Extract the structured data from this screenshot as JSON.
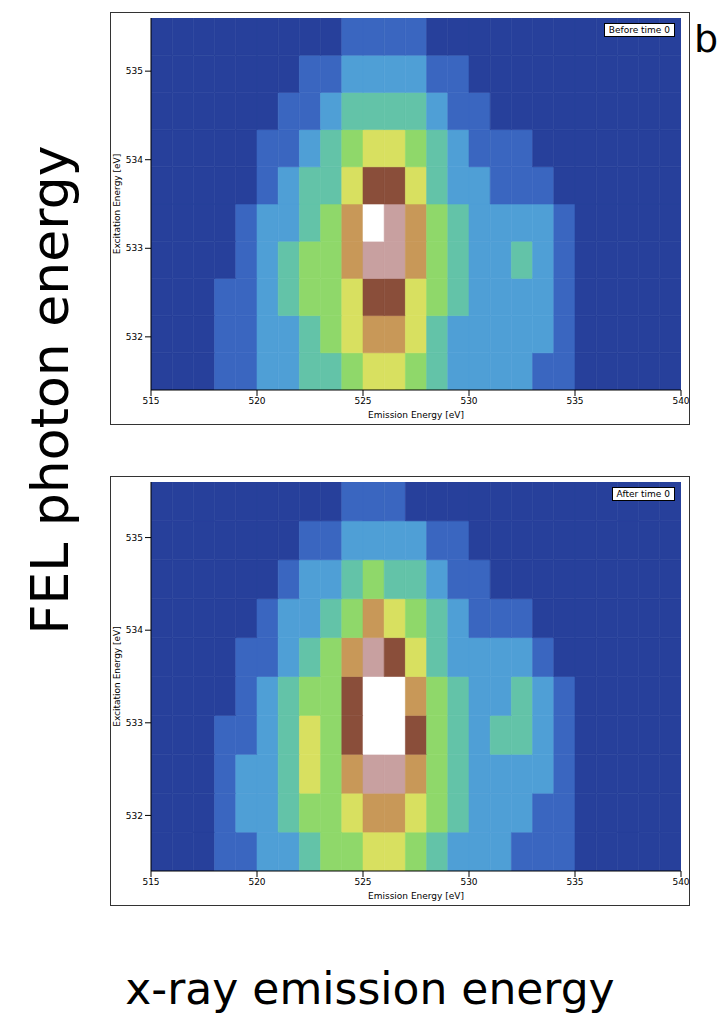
{
  "panel_label": "b",
  "y_label": "FEL photon energy",
  "x_label": "x-ray emission energy",
  "chart_data": [
    {
      "type": "heatmap",
      "title": "Before time 0",
      "x_axis_label": "Emission Energy [eV]",
      "y_axis_label": "Excitation Energy [eV]",
      "xlim": [
        515,
        540
      ],
      "xticks": [
        515,
        520,
        525,
        530,
        535,
        540
      ],
      "ylim": [
        531.4,
        535.6
      ],
      "yticks": [
        532,
        533,
        534,
        535
      ],
      "x_bins": [
        515,
        516,
        517,
        518,
        519,
        520,
        521,
        522,
        523,
        524,
        525,
        526,
        527,
        528,
        529,
        530,
        531,
        532,
        533,
        534,
        535,
        536,
        537,
        538,
        539,
        540
      ],
      "y_bins": [
        531.4,
        531.82,
        532.24,
        532.66,
        533.08,
        533.5,
        533.92,
        534.34,
        534.76,
        535.18,
        535.6
      ],
      "zlim": [
        0,
        10
      ],
      "cells": [
        [
          1,
          1,
          1,
          2,
          2,
          3,
          3,
          4,
          4,
          5,
          6,
          6,
          5,
          4,
          3,
          3,
          3,
          3,
          2,
          2,
          1,
          1,
          1,
          1,
          1
        ],
        [
          1,
          1,
          1,
          2,
          2,
          3,
          3,
          4,
          5,
          6,
          7,
          7,
          6,
          4,
          3,
          3,
          3,
          3,
          3,
          2,
          1,
          1,
          1,
          1,
          1
        ],
        [
          1,
          1,
          1,
          2,
          2,
          3,
          4,
          5,
          5,
          6,
          8,
          8,
          6,
          5,
          4,
          3,
          3,
          3,
          3,
          2,
          1,
          1,
          1,
          1,
          1
        ],
        [
          1,
          1,
          1,
          1,
          2,
          3,
          4,
          5,
          5,
          7,
          9,
          9,
          7,
          5,
          4,
          3,
          3,
          4,
          3,
          2,
          1,
          1,
          1,
          1,
          1
        ],
        [
          1,
          1,
          1,
          1,
          2,
          3,
          3,
          4,
          5,
          7,
          10,
          9,
          7,
          5,
          4,
          3,
          3,
          3,
          3,
          2,
          1,
          1,
          1,
          1,
          1
        ],
        [
          1,
          1,
          1,
          1,
          1,
          2,
          3,
          4,
          4,
          6,
          8,
          8,
          6,
          4,
          3,
          3,
          2,
          2,
          2,
          1,
          1,
          1,
          1,
          1,
          1
        ],
        [
          1,
          1,
          1,
          1,
          1,
          2,
          2,
          3,
          4,
          5,
          6,
          6,
          5,
          4,
          3,
          2,
          2,
          2,
          1,
          1,
          1,
          1,
          1,
          1,
          1
        ],
        [
          1,
          1,
          1,
          1,
          1,
          1,
          2,
          2,
          3,
          4,
          4,
          4,
          4,
          3,
          2,
          2,
          1,
          1,
          1,
          1,
          1,
          1,
          1,
          1,
          1
        ],
        [
          1,
          1,
          1,
          1,
          1,
          1,
          1,
          2,
          2,
          3,
          3,
          3,
          3,
          2,
          2,
          1,
          1,
          1,
          1,
          1,
          1,
          1,
          1,
          1,
          1
        ],
        [
          1,
          1,
          1,
          1,
          1,
          1,
          1,
          1,
          1,
          2,
          2,
          2,
          2,
          1,
          1,
          1,
          1,
          1,
          1,
          1,
          1,
          1,
          1,
          1,
          1
        ]
      ]
    },
    {
      "type": "heatmap",
      "title": "After time 0",
      "x_axis_label": "Emission Energy [eV]",
      "y_axis_label": "Excitation Energy [eV]",
      "xlim": [
        515,
        540
      ],
      "xticks": [
        515,
        520,
        525,
        530,
        535,
        540
      ],
      "ylim": [
        531.4,
        535.6
      ],
      "yticks": [
        532,
        533,
        534,
        535
      ],
      "x_bins": [
        515,
        516,
        517,
        518,
        519,
        520,
        521,
        522,
        523,
        524,
        525,
        526,
        527,
        528,
        529,
        530,
        531,
        532,
        533,
        534,
        535,
        536,
        537,
        538,
        539,
        540
      ],
      "y_bins": [
        531.4,
        531.82,
        532.24,
        532.66,
        533.08,
        533.5,
        533.92,
        534.34,
        534.76,
        535.18,
        535.6
      ],
      "zlim": [
        0,
        10
      ],
      "cells": [
        [
          1,
          1,
          1,
          2,
          2,
          3,
          3,
          4,
          5,
          5,
          6,
          6,
          5,
          4,
          3,
          3,
          3,
          2,
          2,
          2,
          1,
          1,
          1,
          1,
          1
        ],
        [
          1,
          1,
          1,
          2,
          3,
          3,
          4,
          5,
          5,
          6,
          7,
          7,
          6,
          5,
          4,
          3,
          3,
          3,
          2,
          2,
          1,
          1,
          1,
          1,
          1
        ],
        [
          1,
          1,
          1,
          2,
          3,
          3,
          4,
          6,
          5,
          7,
          9,
          9,
          7,
          5,
          4,
          3,
          3,
          3,
          3,
          2,
          1,
          1,
          1,
          1,
          1
        ],
        [
          1,
          1,
          1,
          2,
          2,
          3,
          4,
          6,
          5,
          8,
          10,
          10,
          8,
          5,
          4,
          3,
          4,
          4,
          3,
          2,
          1,
          1,
          1,
          1,
          1
        ],
        [
          1,
          1,
          1,
          1,
          2,
          3,
          4,
          5,
          5,
          8,
          10,
          10,
          7,
          5,
          4,
          3,
          3,
          4,
          3,
          2,
          1,
          1,
          1,
          1,
          1
        ],
        [
          1,
          1,
          1,
          1,
          2,
          2,
          3,
          4,
          5,
          7,
          9,
          8,
          6,
          4,
          3,
          3,
          3,
          3,
          2,
          1,
          1,
          1,
          1,
          1,
          1
        ],
        [
          1,
          1,
          1,
          1,
          1,
          2,
          3,
          3,
          4,
          5,
          7,
          6,
          5,
          4,
          3,
          2,
          2,
          2,
          1,
          1,
          1,
          1,
          1,
          1,
          1
        ],
        [
          1,
          1,
          1,
          1,
          1,
          1,
          2,
          3,
          3,
          4,
          5,
          4,
          4,
          3,
          2,
          2,
          1,
          1,
          1,
          1,
          1,
          1,
          1,
          1,
          1
        ],
        [
          1,
          1,
          1,
          1,
          1,
          1,
          1,
          2,
          2,
          3,
          3,
          3,
          3,
          2,
          2,
          1,
          1,
          1,
          1,
          1,
          1,
          1,
          1,
          1,
          1
        ],
        [
          1,
          1,
          1,
          1,
          1,
          1,
          1,
          1,
          1,
          2,
          2,
          2,
          1,
          1,
          1,
          1,
          1,
          1,
          1,
          1,
          1,
          1,
          1,
          1,
          1
        ]
      ]
    }
  ]
}
